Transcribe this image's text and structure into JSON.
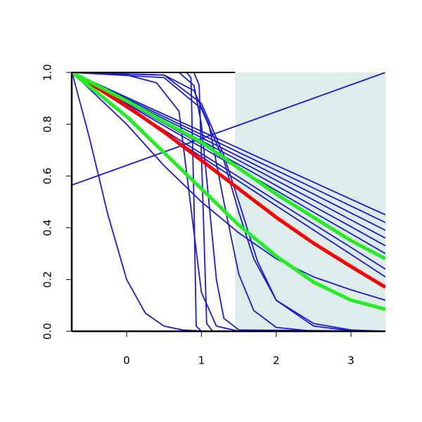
{
  "chart_data": {
    "type": "line",
    "xlim": [
      -0.734,
      3.46
    ],
    "ylim": [
      0,
      1
    ],
    "xticks": [
      0,
      1,
      2,
      3
    ],
    "yticks": [
      {
        "value": 0,
        "label": "0.0"
      },
      0.2,
      0.4,
      0.6,
      0.8,
      {
        "value": 1,
        "label": "1.0"
      }
    ],
    "shade": {
      "from": 1.45,
      "color": "#dfecec"
    },
    "series": [
      {
        "color": "#1a1ad8",
        "width": 1.8,
        "x": [
          -0.73,
          0,
          0.5,
          1,
          1.5,
          2,
          2.5,
          3,
          3.46
        ],
        "values": [
          1,
          0.904,
          0.838,
          0.773,
          0.707,
          0.641,
          0.576,
          0.51,
          0.45
        ]
      },
      {
        "color": "#1a1ad8",
        "width": 1.8,
        "x": [
          -0.73,
          0,
          0.5,
          1,
          1.5,
          2,
          2.5,
          3,
          3.46
        ],
        "values": [
          1,
          0.899,
          0.829,
          0.76,
          0.691,
          0.622,
          0.553,
          0.484,
          0.42
        ]
      },
      {
        "color": "#1a1ad8",
        "width": 1.8,
        "x": [
          -0.73,
          0,
          0.5,
          1,
          1.5,
          2,
          2.5,
          3,
          3.46
        ],
        "values": [
          1,
          0.894,
          0.821,
          0.748,
          0.675,
          0.602,
          0.53,
          0.457,
          0.39
        ]
      },
      {
        "color": "#1a1ad8",
        "width": 1.8,
        "x": [
          -0.73,
          0,
          0.5,
          1,
          1.5,
          2,
          2.5,
          3,
          3.46
        ],
        "values": [
          1,
          0.889,
          0.812,
          0.736,
          0.66,
          0.583,
          0.507,
          0.43,
          0.36
        ]
      },
      {
        "color": "#1a1ad8",
        "width": 1.8,
        "x": [
          -0.73,
          0,
          0.5,
          1,
          1.5,
          2,
          2.5,
          3,
          3.46
        ],
        "values": [
          1,
          0.883,
          0.803,
          0.723,
          0.644,
          0.563,
          0.483,
          0.404,
          0.33
        ]
      },
      {
        "color": "#1a1ad8",
        "width": 1.8,
        "x": [
          -0.73,
          0,
          0.5,
          1,
          1.5,
          2,
          2.5,
          3,
          3.46
        ],
        "values": [
          1,
          0.878,
          0.794,
          0.711,
          0.628,
          0.544,
          0.46,
          0.377,
          0.3
        ]
      },
      {
        "color": "#1a1ad8",
        "width": 1.8,
        "x": [
          -0.73,
          0,
          0.5,
          1,
          1.5,
          2,
          2.5,
          3,
          3.46
        ],
        "values": [
          1,
          0.868,
          0.777,
          0.686,
          0.596,
          0.504,
          0.414,
          0.324,
          0.24
        ]
      },
      {
        "color": "#1a1ad8",
        "width": 1.8,
        "x": [
          -0.73,
          0,
          0.5,
          1,
          1.5,
          2,
          2.5,
          3,
          3.46
        ],
        "values": [
          1,
          0.863,
          0.768,
          0.674,
          0.58,
          0.485,
          0.391,
          0.297,
          0.21
        ]
      },
      {
        "color": "#1a1ad8",
        "width": 1.8,
        "x": [
          -0.73,
          0,
          0.5,
          1,
          1.5,
          2,
          2.5,
          3,
          3.46
        ],
        "values": [
          1,
          0.8,
          0.64,
          0.5,
          0.38,
          0.28,
          0.21,
          0.16,
          0.12
        ]
      },
      {
        "color": "#1a1ad8",
        "width": 1.8,
        "x": [
          -0.73,
          -0.5,
          -0.25,
          0,
          0.25,
          0.5,
          0.75,
          1,
          3.46
        ],
        "values": [
          1,
          0.75,
          0.45,
          0.2,
          0.07,
          0.02,
          0.005,
          0.001,
          0
        ]
      },
      {
        "color": "#1a1ad8",
        "width": 1.8,
        "x": [
          -0.73,
          3.46
        ],
        "values": [
          0.565,
          1
        ]
      },
      {
        "color": "#1a1ad8",
        "width": 1.8,
        "x": [
          -0.73,
          0.8,
          0.86,
          0.9,
          0.93,
          1.0,
          3.46
        ],
        "values": [
          1,
          1,
          0.98,
          0.5,
          0.02,
          0,
          0
        ]
      },
      {
        "color": "#1a1ad8",
        "width": 1.8,
        "x": [
          -0.73,
          0.9,
          0.97,
          1.02,
          1.07,
          1.15,
          3.46
        ],
        "values": [
          1,
          1,
          0.95,
          0.5,
          0.03,
          0,
          0
        ]
      },
      {
        "color": "#1a1ad8",
        "width": 1.8,
        "x": [
          -0.73,
          0.7,
          0.9,
          1.0,
          1.1,
          1.2,
          1.3,
          1.5,
          3.46
        ],
        "values": [
          1,
          1,
          0.95,
          0.8,
          0.5,
          0.2,
          0.05,
          0.005,
          0
        ]
      },
      {
        "color": "#1a1ad8",
        "width": 1.8,
        "x": [
          -0.73,
          0,
          0.4,
          0.7,
          0.85,
          1.0,
          1.2,
          1.5,
          3.46
        ],
        "values": [
          1,
          0.99,
          0.96,
          0.85,
          0.5,
          0.15,
          0.02,
          0,
          0
        ]
      },
      {
        "color": "#1a1ad8",
        "width": 1.8,
        "x": [
          -0.73,
          0.5,
          0.9,
          1.1,
          1.3,
          1.5,
          1.7,
          2,
          2.5,
          3.46
        ],
        "values": [
          1,
          0.99,
          0.93,
          0.8,
          0.5,
          0.22,
          0.08,
          0.015,
          0,
          0
        ]
      },
      {
        "color": "#1a1ad8",
        "width": 1.8,
        "x": [
          -0.73,
          0.5,
          1,
          1.3,
          1.5,
          1.75,
          2,
          2.5,
          3,
          3.46
        ],
        "values": [
          1,
          0.99,
          0.88,
          0.68,
          0.5,
          0.27,
          0.12,
          0.02,
          0.002,
          0
        ]
      },
      {
        "color": "#1a1ad8",
        "width": 1.8,
        "x": [
          -0.73,
          0.5,
          1,
          1.3,
          1.5,
          1.7,
          2,
          2.5,
          3,
          3.46
        ],
        "values": [
          1,
          0.98,
          0.86,
          0.66,
          0.46,
          0.28,
          0.12,
          0.03,
          0.005,
          0
        ]
      },
      {
        "color": "#ff0000",
        "width": 5,
        "x": [
          -0.73,
          0,
          0.5,
          1,
          1.5,
          2,
          2.5,
          3,
          3.46
        ],
        "values": [
          1,
          0.87,
          0.77,
          0.66,
          0.55,
          0.44,
          0.34,
          0.25,
          0.17
        ]
      },
      {
        "color": "#22ee22",
        "width": 5,
        "x": [
          -0.73,
          0,
          0.5,
          1,
          1.5,
          2,
          2.5,
          3,
          3.46
        ],
        "values": [
          1,
          0.89,
          0.81,
          0.73,
          0.63,
          0.53,
          0.44,
          0.35,
          0.28
        ]
      },
      {
        "color": "#22ee22",
        "width": 5,
        "x": [
          -0.73,
          0,
          0.5,
          1,
          1.5,
          2,
          2.5,
          3,
          3.46
        ],
        "values": [
          1,
          0.83,
          0.69,
          0.55,
          0.41,
          0.29,
          0.19,
          0.12,
          0.085
        ]
      }
    ]
  }
}
